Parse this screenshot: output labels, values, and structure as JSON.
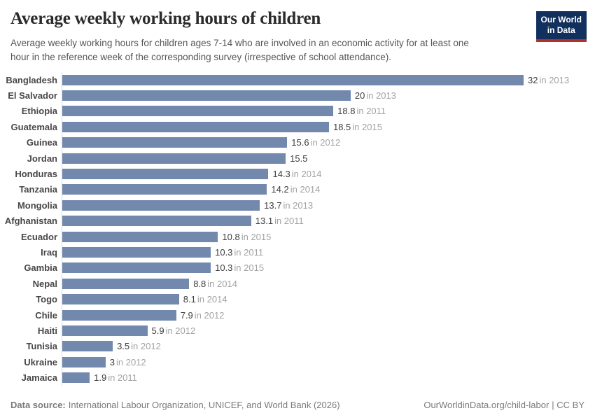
{
  "header": {
    "title": "Average weekly working hours of children",
    "subtitle": "Average weekly working hours for children ages 7-14 who are involved in an economic activity for at least one\nhour in the reference week of the corresponding survey (irrespective of school attendance)."
  },
  "logo": {
    "line1": "Our World",
    "line2": "in Data",
    "bg_color": "#12305d",
    "accent_color": "#b0322d"
  },
  "footer": {
    "source_label": "Data source:",
    "source_text": "International Labour Organization, UNICEF, and World Bank (2026)",
    "url": "OurWorldinData.org/child-labor",
    "license": "| CC BY"
  },
  "chart_data": {
    "type": "bar",
    "orientation": "horizontal",
    "title": "Average weekly working hours of children",
    "xlim": [
      0,
      32
    ],
    "grid": false,
    "legend": false,
    "bar_color": "#7288ad",
    "axis_line_color": "#dcdcdc",
    "categories": [
      "Bangladesh",
      "El Salvador",
      "Ethiopia",
      "Guatemala",
      "Guinea",
      "Jordan",
      "Honduras",
      "Tanzania",
      "Mongolia",
      "Afghanistan",
      "Ecuador",
      "Iraq",
      "Gambia",
      "Nepal",
      "Togo",
      "Chile",
      "Haiti",
      "Tunisia",
      "Ukraine",
      "Jamaica"
    ],
    "values": [
      32,
      20,
      18.8,
      18.5,
      15.6,
      15.5,
      14.3,
      14.2,
      13.7,
      13.1,
      10.8,
      10.3,
      10.3,
      8.8,
      8.1,
      7.9,
      5.9,
      3.5,
      3,
      1.9
    ],
    "rows": [
      {
        "label": "Bangladesh",
        "value": 32,
        "value_label": "32",
        "year_label": "in 2013"
      },
      {
        "label": "El Salvador",
        "value": 20,
        "value_label": "20",
        "year_label": "in 2013"
      },
      {
        "label": "Ethiopia",
        "value": 18.8,
        "value_label": "18.8",
        "year_label": "in 2011"
      },
      {
        "label": "Guatemala",
        "value": 18.5,
        "value_label": "18.5",
        "year_label": "in 2015"
      },
      {
        "label": "Guinea",
        "value": 15.6,
        "value_label": "15.6",
        "year_label": "in 2012"
      },
      {
        "label": "Jordan",
        "value": 15.5,
        "value_label": "15.5",
        "year_label": ""
      },
      {
        "label": "Honduras",
        "value": 14.3,
        "value_label": "14.3",
        "year_label": "in 2014"
      },
      {
        "label": "Tanzania",
        "value": 14.2,
        "value_label": "14.2",
        "year_label": "in 2014"
      },
      {
        "label": "Mongolia",
        "value": 13.7,
        "value_label": "13.7",
        "year_label": "in 2013"
      },
      {
        "label": "Afghanistan",
        "value": 13.1,
        "value_label": "13.1",
        "year_label": "in 2011"
      },
      {
        "label": "Ecuador",
        "value": 10.8,
        "value_label": "10.8",
        "year_label": "in 2015"
      },
      {
        "label": "Iraq",
        "value": 10.3,
        "value_label": "10.3",
        "year_label": "in 2011"
      },
      {
        "label": "Gambia",
        "value": 10.3,
        "value_label": "10.3",
        "year_label": "in 2015"
      },
      {
        "label": "Nepal",
        "value": 8.8,
        "value_label": "8.8",
        "year_label": "in 2014"
      },
      {
        "label": "Togo",
        "value": 8.1,
        "value_label": "8.1",
        "year_label": "in 2014"
      },
      {
        "label": "Chile",
        "value": 7.9,
        "value_label": "7.9",
        "year_label": "in 2012"
      },
      {
        "label": "Haiti",
        "value": 5.9,
        "value_label": "5.9",
        "year_label": "in 2012"
      },
      {
        "label": "Tunisia",
        "value": 3.5,
        "value_label": "3.5",
        "year_label": "in 2012"
      },
      {
        "label": "Ukraine",
        "value": 3,
        "value_label": "3",
        "year_label": "in 2012"
      },
      {
        "label": "Jamaica",
        "value": 1.9,
        "value_label": "1.9",
        "year_label": "in 2011"
      }
    ]
  }
}
